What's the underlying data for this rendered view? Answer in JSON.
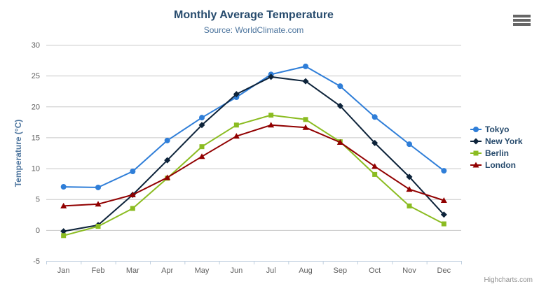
{
  "credits": "Highcharts.com",
  "export_menu": {
    "icon": "hamburger-menu-icon"
  },
  "chart_data": {
    "type": "line",
    "title": "Monthly Average Temperature",
    "subtitle": "Source: WorldClimate.com",
    "categories": [
      "Jan",
      "Feb",
      "Mar",
      "Apr",
      "May",
      "Jun",
      "Jul",
      "Aug",
      "Sep",
      "Oct",
      "Nov",
      "Dec"
    ],
    "series": [
      {
        "name": "Tokyo",
        "color": "#2f7ed8",
        "marker": "circle",
        "values": [
          7.0,
          6.9,
          9.5,
          14.5,
          18.2,
          21.5,
          25.2,
          26.5,
          23.3,
          18.3,
          13.9,
          9.6
        ]
      },
      {
        "name": "New York",
        "color": "#0d233a",
        "marker": "diamond",
        "values": [
          -0.2,
          0.8,
          5.7,
          11.3,
          17.0,
          22.0,
          24.8,
          24.1,
          20.1,
          14.1,
          8.6,
          2.5
        ]
      },
      {
        "name": "Berlin",
        "color": "#8bbc21",
        "marker": "square",
        "values": [
          -0.9,
          0.6,
          3.5,
          8.4,
          13.5,
          17.0,
          18.6,
          17.9,
          14.3,
          9.0,
          3.9,
          1.0
        ]
      },
      {
        "name": "London",
        "color": "#910000",
        "marker": "triangle",
        "values": [
          3.9,
          4.2,
          5.7,
          8.5,
          11.9,
          15.2,
          17.0,
          16.6,
          14.2,
          10.3,
          6.6,
          4.8
        ]
      }
    ],
    "xlabel": "",
    "ylabel": "Temperature (°C)",
    "ylim": [
      -5,
      30
    ],
    "ytick_step": 5,
    "grid": true,
    "legend_position": "right",
    "colors": {
      "title": "#274b6d",
      "subtitle": "#4d759e",
      "y_axis_title": "#4d759e",
      "axis_labels": "#606060",
      "grid_line": "#c8c8c8",
      "axis_line": "#c0d0e0",
      "legend_text": "#274b6d",
      "credits": "#909090",
      "menu_icon": "#666666"
    }
  }
}
